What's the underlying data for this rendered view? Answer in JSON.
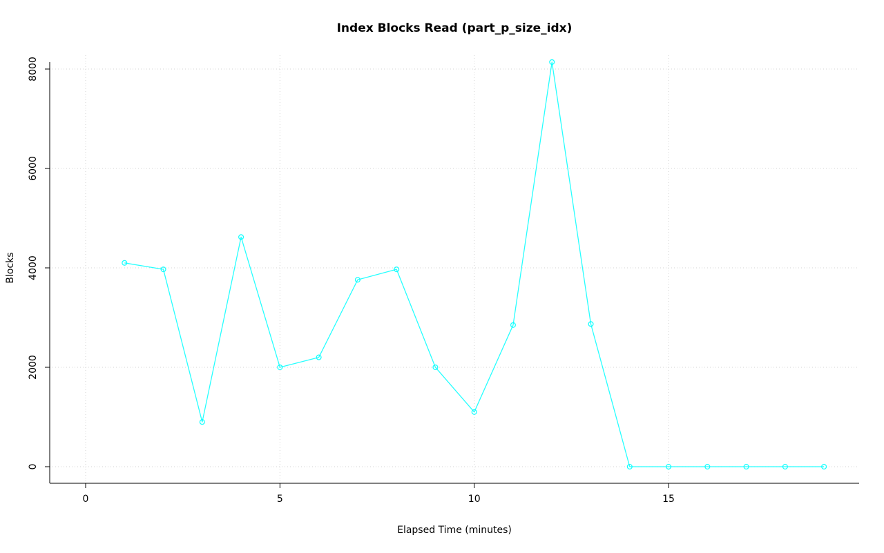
{
  "chart_data": {
    "type": "line",
    "title": "Index Blocks Read (part_p_size_idx)",
    "xlabel": "Elapsed Time (minutes)",
    "ylabel": "Blocks",
    "x": [
      1,
      2,
      3,
      4,
      5,
      6,
      7,
      8,
      9,
      10,
      11,
      12,
      13,
      14,
      15,
      16,
      17,
      18,
      19
    ],
    "series": [
      {
        "name": "index-blocks-read",
        "values": [
          4100,
          3970,
          900,
          4620,
          2000,
          2200,
          3760,
          3970,
          2000,
          1100,
          2850,
          8140,
          2870,
          0,
          0,
          0,
          0,
          0,
          0
        ]
      }
    ],
    "x_ticks": [
      0,
      5,
      10,
      15
    ],
    "y_ticks": [
      0,
      2000,
      4000,
      6000,
      8000
    ],
    "xlim": [
      -0.8,
      19.8
    ],
    "ylim": [
      -330,
      8470
    ],
    "grid": true,
    "legend": "none",
    "colors": {
      "line": "#00FFFF",
      "marker": "#00FFFF",
      "grid": "#D3D3D3",
      "axis": "#000000",
      "background": "#FFFFFF"
    },
    "marker": "open-circle"
  }
}
